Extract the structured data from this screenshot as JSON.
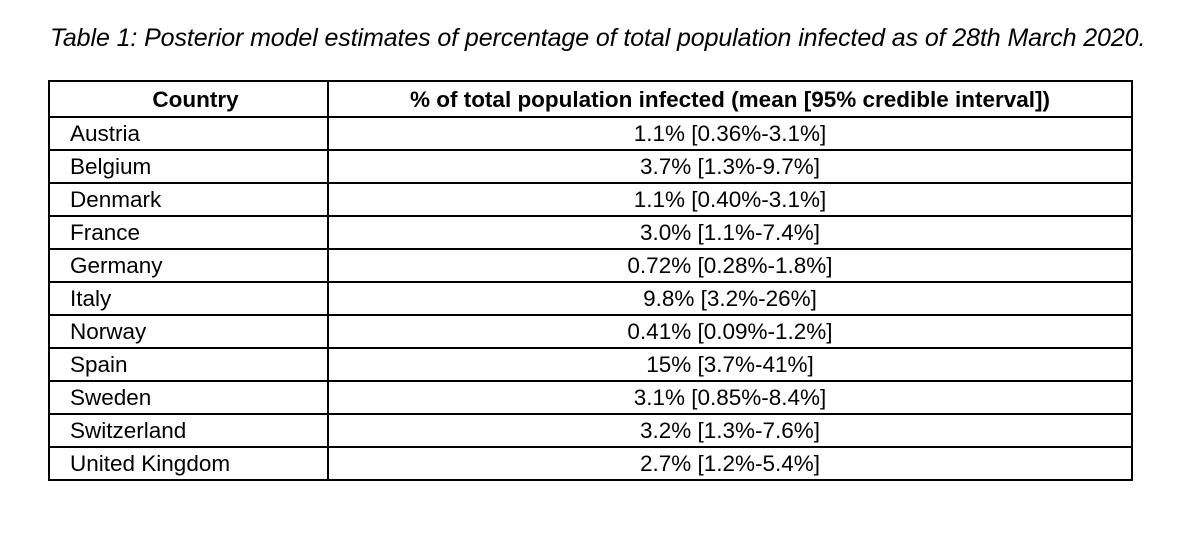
{
  "caption": "Table 1: Posterior model estimates of percentage of total population infected as of 28th March 2020.",
  "table": {
    "headers": [
      "Country",
      "% of total population infected (mean [95% credible interval])"
    ],
    "rows": [
      {
        "country": "Austria",
        "value": "1.1% [0.36%-3.1%]"
      },
      {
        "country": "Belgium",
        "value": "3.7% [1.3%-9.7%]"
      },
      {
        "country": "Denmark",
        "value": "1.1% [0.40%-3.1%]"
      },
      {
        "country": "France",
        "value": "3.0% [1.1%-7.4%]"
      },
      {
        "country": "Germany",
        "value": "0.72% [0.28%-1.8%]"
      },
      {
        "country": "Italy",
        "value": "9.8% [3.2%-26%]"
      },
      {
        "country": "Norway",
        "value": "0.41% [0.09%-1.2%]"
      },
      {
        "country": "Spain",
        "value": "15% [3.7%-41%]"
      },
      {
        "country": "Sweden",
        "value": "3.1% [0.85%-8.4%]"
      },
      {
        "country": "Switzerland",
        "value": "3.2% [1.3%-7.6%]"
      },
      {
        "country": "United Kingdom",
        "value": "2.7% [1.2%-5.4%]"
      }
    ]
  }
}
